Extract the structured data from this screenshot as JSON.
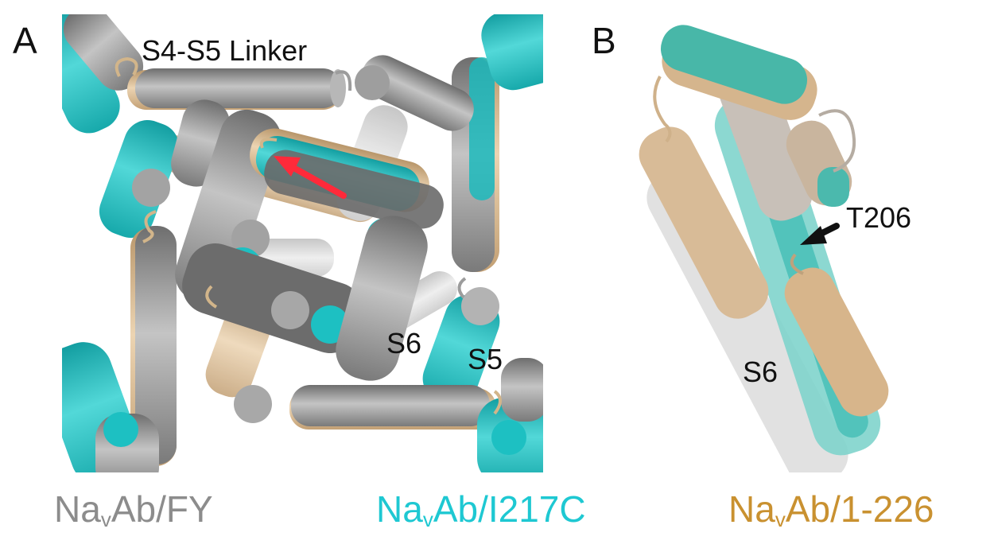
{
  "panels": {
    "a": {
      "letter": "A",
      "labels": {
        "linker": "S4-S5 Linker",
        "s6": "S6",
        "s5": "S5"
      }
    },
    "b": {
      "letter": "B",
      "labels": {
        "residue": "T206",
        "s6": "S6"
      }
    }
  },
  "legend": [
    {
      "prefix": "Na",
      "sub": "v",
      "suffix": "Ab/FY",
      "color": "#8c8c8c"
    },
    {
      "prefix": "Na",
      "sub": "v",
      "suffix": "Ab/I217C",
      "color": "#1ec8d2"
    },
    {
      "prefix": "Na",
      "sub": "v",
      "suffix": "Ab/1-226",
      "color": "#c99130"
    }
  ],
  "colors": {
    "gray": "#8f8f8f",
    "cyan": "#1fbcbf",
    "tan": "#d4b48a",
    "arrow_red": "#ff2a3a"
  }
}
